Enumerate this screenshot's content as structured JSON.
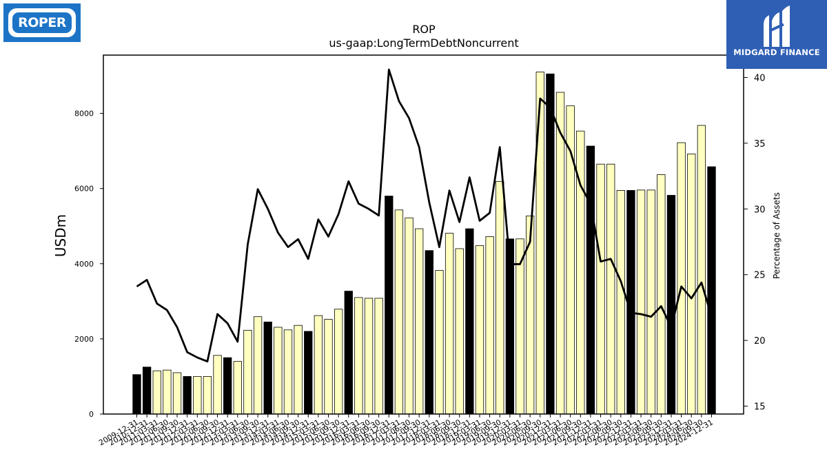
{
  "logos": {
    "left_text": "ROPER",
    "right_text": "MIDGARD FINANCE"
  },
  "chart_data": {
    "type": "bar",
    "title": "ROP",
    "subtitle": "us-gaap:LongTermDebtNoncurrent",
    "ylabel": "USDm",
    "y2label": "Percentage of Assets",
    "ylim": [
      0,
      9550
    ],
    "y2lim": [
      14.4,
      41.7
    ],
    "yticks": [
      0,
      2000,
      4000,
      6000,
      8000
    ],
    "y2ticks": [
      15,
      20,
      25,
      30,
      35,
      40
    ],
    "grid": false,
    "colors": {
      "bar_annual": "#000000",
      "bar_quarter": "#ffffc0",
      "bar_edge": "#000000",
      "line": "#000000"
    },
    "categories": [
      "2009-12-31",
      "2010-12-31",
      "2011-03-31",
      "2011-06-30",
      "2011-09-30",
      "2011-12-31",
      "2012-03-31",
      "2012-06-30",
      "2012-09-30",
      "2012-12-31",
      "2013-03-31",
      "2013-06-30",
      "2013-09-30",
      "2013-12-31",
      "2014-03-31",
      "2014-06-30",
      "2014-09-30",
      "2014-12-31",
      "2015-03-31",
      "2015-06-30",
      "2015-09-30",
      "2015-12-31",
      "2016-03-31",
      "2016-06-30",
      "2016-09-30",
      "2016-12-31",
      "2017-03-31",
      "2017-06-30",
      "2017-09-30",
      "2017-12-31",
      "2018-03-31",
      "2018-06-30",
      "2018-09-30",
      "2018-12-31",
      "2019-03-31",
      "2019-06-30",
      "2019-09-30",
      "2019-12-31",
      "2020-03-31",
      "2020-06-30",
      "2020-09-30",
      "2020-12-31",
      "2021-03-31",
      "2021-06-30",
      "2021-09-30",
      "2021-12-31",
      "2022-03-31",
      "2022-06-30",
      "2022-09-30",
      "2022-12-31",
      "2023-03-31",
      "2023-06-30",
      "2023-09-30",
      "2023-12-31",
      "2024-03-31",
      "2024-06-30",
      "2024-09-30",
      "2024-12-31"
    ],
    "series": [
      {
        "type": "bar",
        "values": [
          1050,
          1250,
          1150,
          1170,
          1100,
          1000,
          1000,
          1000,
          1560,
          1500,
          1400,
          2230,
          2590,
          2450,
          2310,
          2240,
          2360,
          2200,
          2620,
          2520,
          2790,
          3270,
          3100,
          3080,
          3080,
          5800,
          5430,
          5220,
          4930,
          4350,
          3820,
          4810,
          4400,
          4930,
          4480,
          4720,
          6190,
          4660,
          4660,
          5270,
          9100,
          9050,
          8560,
          8200,
          7530,
          7130,
          6650,
          6650,
          5950,
          5950,
          5960,
          5960,
          6370,
          5820,
          7220,
          6920,
          7680,
          6580
        ]
      },
      {
        "type": "line",
        "axis": "right",
        "values": [
          24.1,
          24.6,
          22.8,
          22.3,
          21.0,
          19.1,
          18.7,
          18.4,
          22.0,
          21.3,
          19.9,
          27.3,
          31.5,
          30.0,
          28.2,
          27.1,
          27.7,
          26.2,
          29.2,
          27.9,
          29.6,
          32.1,
          30.4,
          30.0,
          29.5,
          40.6,
          38.2,
          36.9,
          34.7,
          30.5,
          27.1,
          31.4,
          29.0,
          32.4,
          29.1,
          29.7,
          34.7,
          25.8,
          25.8,
          27.5,
          38.4,
          37.7,
          35.8,
          34.4,
          31.8,
          30.4,
          26.0,
          26.2,
          24.5,
          22.1,
          22.0,
          21.8,
          22.6,
          21.0,
          24.1,
          23.2,
          24.4,
          21.8
        ]
      }
    ]
  }
}
